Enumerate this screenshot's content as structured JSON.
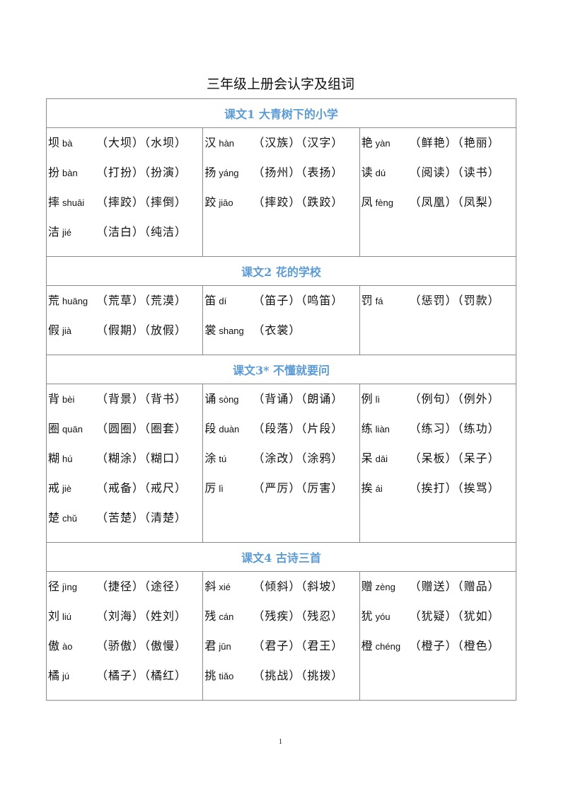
{
  "title": "三年级上册会认字及组词",
  "page_number": "1",
  "accent_color": "#5b9bd5",
  "sections": [
    {
      "heading": "课文1 大青树下的小学",
      "columns": [
        [
          {
            "char": "坝",
            "pinyin": "bà",
            "words": "（大坝）（水坝）"
          },
          {
            "char": "扮",
            "pinyin": "bàn",
            "words": "（打扮）（扮演）"
          },
          {
            "char": "摔",
            "pinyin": "shuāi",
            "words": "（摔跤）（摔倒）"
          },
          {
            "char": "洁",
            "pinyin": "jié",
            "words": "（洁白）（纯洁）"
          }
        ],
        [
          {
            "char": "汉",
            "pinyin": "hàn",
            "words": "（汉族）（汉字）"
          },
          {
            "char": "扬",
            "pinyin": "yáng",
            "words": "（扬州）（表扬）"
          },
          {
            "char": "跤",
            "pinyin": "jiāo",
            "words": "（摔跤）（跌跤）"
          }
        ],
        [
          {
            "char": "艳",
            "pinyin": "yàn",
            "words": "（鲜艳）（艳丽）"
          },
          {
            "char": "读",
            "pinyin": "dú",
            "words": "（阅读）（读书）"
          },
          {
            "char": "凤",
            "pinyin": "fèng",
            "words": "（凤凰）（凤梨）"
          }
        ]
      ]
    },
    {
      "heading": "课文2 花的学校",
      "columns": [
        [
          {
            "char": "荒",
            "pinyin": "huāng",
            "words": "（荒草）（荒漠）"
          },
          {
            "char": "假",
            "pinyin": "jià",
            "words": "（假期）（放假）"
          }
        ],
        [
          {
            "char": "笛",
            "pinyin": "dí",
            "words": "（笛子）（鸣笛）"
          },
          {
            "char": "裳",
            "pinyin": "shang",
            "words": "（衣裳）"
          }
        ],
        [
          {
            "char": "罚",
            "pinyin": "fá",
            "words": "（惩罚）（罚款）"
          }
        ]
      ]
    },
    {
      "heading": "课文3* 不懂就要问",
      "columns": [
        [
          {
            "char": "背",
            "pinyin": "bèi",
            "words": "（背景）（背书）"
          },
          {
            "char": "圈",
            "pinyin": "quān",
            "words": "（圆圈）（圈套）"
          },
          {
            "char": "糊",
            "pinyin": "hú",
            "words": "（糊涂）（糊口）"
          },
          {
            "char": "戒",
            "pinyin": "jiè",
            "words": "（戒备）（戒尺）"
          },
          {
            "char": "楚",
            "pinyin": "chǔ",
            "words": "（苦楚）（清楚）"
          }
        ],
        [
          {
            "char": "诵",
            "pinyin": "sòng",
            "words": "（背诵）（朗诵）"
          },
          {
            "char": "段",
            "pinyin": "duàn",
            "words": "（段落）（片段）"
          },
          {
            "char": "涂",
            "pinyin": "tú",
            "words": "（涂改）（涂鸦）"
          },
          {
            "char": "厉",
            "pinyin": "lì",
            "words": "（严厉）（厉害）"
          }
        ],
        [
          {
            "char": "例",
            "pinyin": "lì",
            "words": "（例句）（例外）"
          },
          {
            "char": "练",
            "pinyin": "liàn",
            "words": "（练习）（练功）"
          },
          {
            "char": "呆",
            "pinyin": "dāi",
            "words": "（呆板）（呆子）"
          },
          {
            "char": "挨",
            "pinyin": "ái",
            "words": "（挨打）（挨骂）"
          }
        ]
      ]
    },
    {
      "heading": "课文4 古诗三首",
      "columns": [
        [
          {
            "char": "径",
            "pinyin": "jìng",
            "words": "（捷径）（途径）"
          },
          {
            "char": "刘",
            "pinyin": "liú",
            "words": "（刘海）（姓刘）"
          },
          {
            "char": "傲",
            "pinyin": "ào",
            "words": "（骄傲）（傲慢）"
          },
          {
            "char": "橘",
            "pinyin": "jú",
            "words": "（橘子）（橘红）"
          }
        ],
        [
          {
            "char": "斜",
            "pinyin": "xié",
            "words": "（倾斜）（斜坡）"
          },
          {
            "char": "残",
            "pinyin": "cán",
            "words": "（残疾）（残忍）"
          },
          {
            "char": "君",
            "pinyin": "jūn",
            "words": "（君子）（君王）"
          },
          {
            "char": "挑",
            "pinyin": "tiǎo",
            "words": "（挑战）（挑拨）"
          }
        ],
        [
          {
            "char": "赠",
            "pinyin": "zèng",
            "words": "（赠送）（赠品）"
          },
          {
            "char": "犹",
            "pinyin": "yóu",
            "words": "（犹疑）（犹如）"
          },
          {
            "char": "橙",
            "pinyin": "chéng",
            "words": "（橙子）（橙色）"
          }
        ]
      ]
    }
  ]
}
